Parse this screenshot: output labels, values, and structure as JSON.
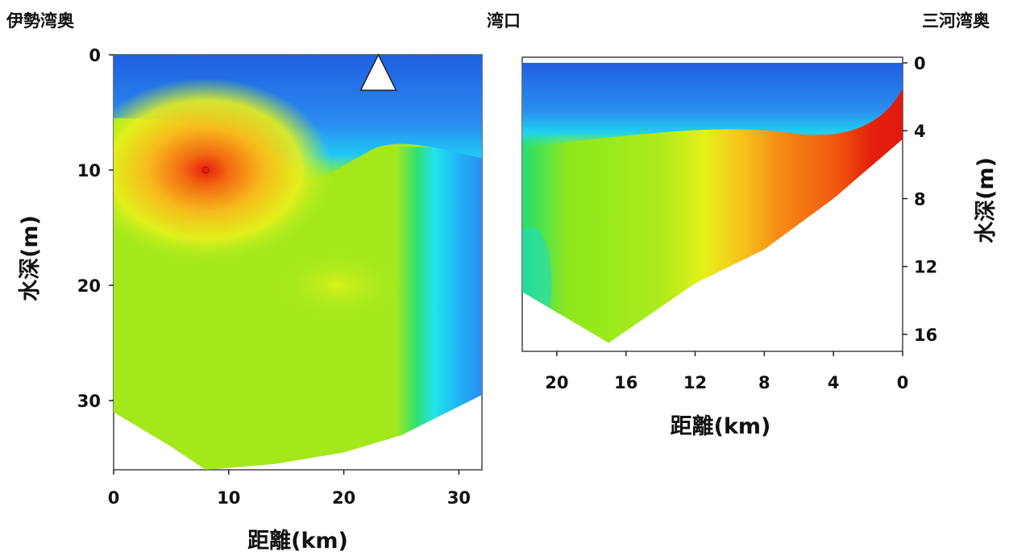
{
  "labels": {
    "left_end": "伊勢湾奥",
    "bay_mouth": "湾口",
    "right_end": "三河湾奥"
  },
  "chart_data": [
    {
      "type": "heatmap",
      "title": "",
      "xlabel": "距離(km)",
      "ylabel": "水深(m)",
      "xlim": [
        0,
        32
      ],
      "ylim": [
        36,
        0
      ],
      "x_ticks": [
        "0",
        "10",
        "20",
        "30"
      ],
      "y_ticks": [
        "0",
        "10",
        "20",
        "30"
      ],
      "x_tick_values": [
        0,
        10,
        20,
        30
      ],
      "y_tick_values": [
        0,
        10,
        20,
        30
      ],
      "marker": {
        "shape": "triangle",
        "x": 23,
        "y": 0,
        "meaning": "湾口"
      },
      "bottom_depth_profile": [
        [
          0,
          31
        ],
        [
          5,
          34
        ],
        [
          8,
          36
        ],
        [
          14,
          35.5
        ],
        [
          20,
          34.5
        ],
        [
          25,
          33
        ],
        [
          28,
          31.5
        ],
        [
          32,
          29.5
        ]
      ],
      "features": [
        {
          "kind": "maximum",
          "x": 8,
          "y": 10,
          "color": "#e8200c"
        },
        {
          "kind": "low_surface_layer",
          "y_range": [
            0,
            6
          ],
          "color": "#1f6fe0"
        }
      ]
    },
    {
      "type": "heatmap",
      "title": "",
      "xlabel": "距離(km)",
      "ylabel": "水深(m)",
      "xlim": [
        22,
        0
      ],
      "ylim": [
        17,
        0
      ],
      "x_ticks": [
        "20",
        "16",
        "12",
        "8",
        "4",
        "0"
      ],
      "y_ticks": [
        "0",
        "4",
        "8",
        "12",
        "16"
      ],
      "x_tick_values": [
        20,
        16,
        12,
        8,
        4,
        0
      ],
      "y_tick_values": [
        0,
        4,
        8,
        12,
        16
      ],
      "bottom_depth_profile": [
        [
          22,
          13.5
        ],
        [
          17,
          16.5
        ],
        [
          12,
          13
        ],
        [
          8,
          11
        ],
        [
          4,
          8
        ],
        [
          0,
          4.5
        ]
      ],
      "features": [
        {
          "kind": "maximum",
          "x": 2,
          "y": 6,
          "color": "#e8200c"
        },
        {
          "kind": "low_surface_layer",
          "y_range": [
            0,
            3
          ],
          "color": "#1f6fe0"
        }
      ]
    }
  ]
}
